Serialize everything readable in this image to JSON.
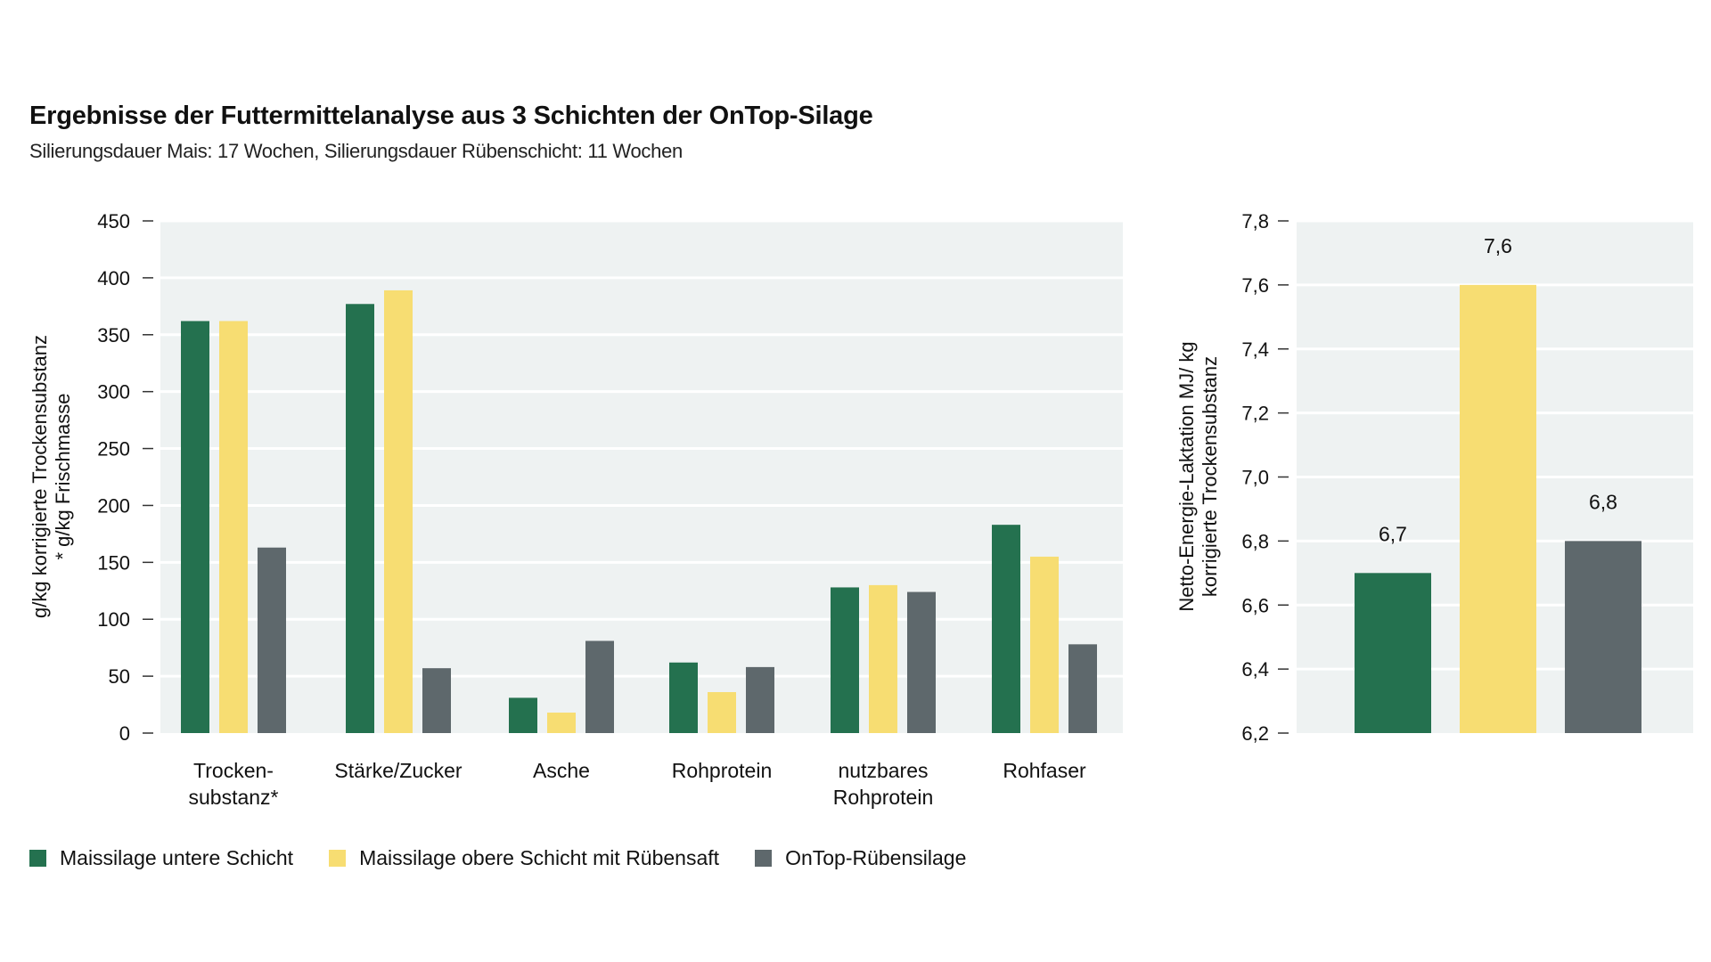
{
  "header": {
    "title": "Ergebnisse der Futtermittelanalyse aus 3 Schichten der OnTop-Silage",
    "subtitle": "Silierungsdauer Mais: 17 Wochen, Silierungsdauer Rübenschicht: 11 Wochen"
  },
  "colors": {
    "green": "#24714f",
    "yellow": "#f7dd72",
    "gray": "#5e686c",
    "plot_background": "#eef2f2",
    "gridline": "#ffffff"
  },
  "legend": [
    {
      "label": "Maissilage untere Schicht",
      "color": "#24714f"
    },
    {
      "label": "Maissilage obere Schicht mit Rübensaft",
      "color": "#f7dd72"
    },
    {
      "label": "OnTop-Rübensilage",
      "color": "#5e686c"
    }
  ],
  "chart_data": [
    {
      "type": "bar",
      "ylabel": [
        "g/kg korrigierte Trockensubstanz",
        "* g/kg Frischmasse"
      ],
      "ylim": [
        0,
        450
      ],
      "yticks": [
        0,
        50,
        100,
        150,
        200,
        250,
        300,
        350,
        400,
        450
      ],
      "ytick_labels": [
        "0",
        "50",
        "100",
        "150",
        "200",
        "250",
        "300",
        "350",
        "400",
        "450"
      ],
      "grid": true,
      "categories": [
        [
          "Trocken-",
          "substanz*"
        ],
        [
          "Stärke/Zucker"
        ],
        [
          "Asche"
        ],
        [
          "Rohprotein"
        ],
        [
          "nutzbares",
          "Rohprotein"
        ],
        [
          "Rohfaser"
        ]
      ],
      "series": [
        {
          "name": "Maissilage untere Schicht",
          "color": "#24714f",
          "values": [
            362,
            377,
            31,
            62,
            128,
            183
          ]
        },
        {
          "name": "Maissilage obere Schicht mit Rübensaft",
          "color": "#f7dd72",
          "values": [
            362,
            389,
            18,
            36,
            130,
            155
          ]
        },
        {
          "name": "OnTop-Rübensilage",
          "color": "#5e686c",
          "values": [
            163,
            57,
            81,
            58,
            124,
            78
          ]
        }
      ]
    },
    {
      "type": "bar",
      "ylabel": [
        "Netto-Energie-Laktation MJ/ kg",
        "korrigierte Trockensubstanz"
      ],
      "ylim": [
        6.2,
        7.8
      ],
      "yticks": [
        6.2,
        6.4,
        6.6,
        6.8,
        7.0,
        7.2,
        7.4,
        7.6,
        7.8
      ],
      "ytick_labels": [
        "6,2",
        "6,4",
        "6,6",
        "6,8",
        "7,0",
        "7,2",
        "7,4",
        "7,6",
        "7,8"
      ],
      "grid": true,
      "series": [
        {
          "name": "Maissilage untere Schicht",
          "color": "#24714f",
          "value": 6.7,
          "label": "6,7"
        },
        {
          "name": "Maissilage obere Schicht mit Rübensaft",
          "color": "#f7dd72",
          "value": 7.6,
          "label": "7,6"
        },
        {
          "name": "OnTop-Rübensilage",
          "color": "#5e686c",
          "value": 6.8,
          "label": "6,8"
        }
      ]
    }
  ]
}
